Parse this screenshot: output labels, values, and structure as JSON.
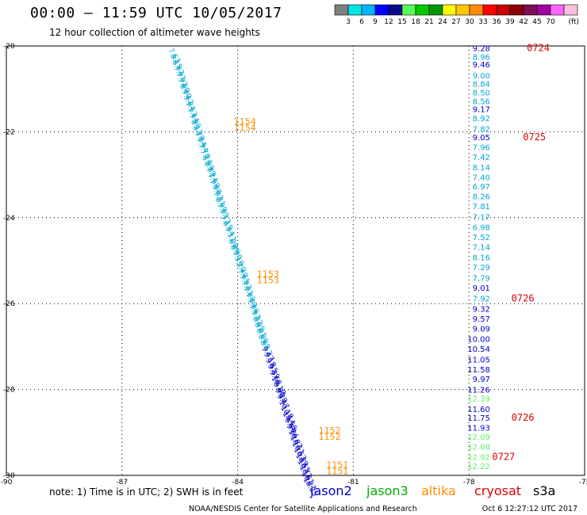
{
  "header": {
    "title": "00:00 – 11:59 UTC 10/05/2017",
    "subtitle": "12 hour collection of altimeter wave heights"
  },
  "colorbar": {
    "colors": [
      "#808080",
      "#00e5e5",
      "#00b4ff",
      "#0000ff",
      "#0a0a8c",
      "#55ff55",
      "#00c800",
      "#009600",
      "#ffff00",
      "#ffc800",
      "#ff8c00",
      "#ff0000",
      "#c80000",
      "#8c0000",
      "#7a0e5a",
      "#a000a0",
      "#ff64ff",
      "#ffc0e0"
    ],
    "labels": [
      "3",
      "6",
      "9",
      "12",
      "15",
      "18",
      "21",
      "24",
      "27",
      "30",
      "33",
      "36",
      "39",
      "42",
      "45",
      "70"
    ],
    "unit": "(ft)"
  },
  "chart_data": {
    "type": "scatter",
    "xlim": [
      -90,
      -75
    ],
    "ylim": [
      -30,
      -20
    ],
    "x_ticks": [
      "-90",
      "-87",
      "-84",
      "-81",
      "-78",
      "-75"
    ],
    "y_ticks": [
      "-20",
      "-22",
      "-24",
      "-26",
      "-28",
      "-30"
    ],
    "grid": true,
    "colors": {
      "jason2": "#0000c8",
      "jason3": "#00aa00",
      "altika": "#ff8c00",
      "cryosat": "#dd0000",
      "s3a": "#000000",
      "cyan": "#00a8d0",
      "lightgreen": "#66ee66"
    },
    "track_west": {
      "x_start": -85.8,
      "x_end": -82.3,
      "values": [
        "7.63",
        "8.15",
        "8.02",
        "7.91",
        "7.92",
        "7.90",
        "8.00",
        "7.62",
        "7.84",
        "7.63",
        "7.44",
        "7.96",
        "8.13",
        "8.28",
        "7.84",
        "7.94",
        "7.78",
        "7.74",
        "6.99",
        "6.89",
        "7.24",
        "7.08",
        "7.08",
        "7.03",
        "7.31",
        "6.99",
        "7.05",
        "7.13",
        "7.15",
        "6.84",
        "7.11",
        "7.00",
        "6.96",
        "6.90",
        "7.16",
        "7.20",
        "7.40",
        "7.65",
        "7.92",
        "7.81",
        "7.80",
        "7.09",
        "7.86",
        "7.63",
        "7.32",
        "8.05",
        "8.01",
        "8.06",
        "8.65",
        "8.57",
        "9.47",
        "9.18",
        "9.55",
        "9.39",
        "9.68",
        "10.10",
        "9.80",
        "9.28",
        "9.47",
        "10.18",
        "10.14",
        "10.55",
        "9.90",
        "9.86",
        "10.82",
        "10.51",
        "10.53",
        "10.29",
        "10.55",
        "10.72",
        "10.61",
        "10.27",
        "10.25"
      ]
    },
    "labels_west": [
      {
        "text": "1154",
        "lon": -84.1,
        "lat": -21.75
      },
      {
        "text": "1154",
        "lon": -84.1,
        "lat": -21.9
      },
      {
        "text": "1153",
        "lon": -83.5,
        "lat": -25.3
      },
      {
        "text": "1153",
        "lon": -83.5,
        "lat": -25.45
      },
      {
        "text": "1152",
        "lon": -81.9,
        "lat": -28.95
      },
      {
        "text": "1152",
        "lon": -81.9,
        "lat": -29.1
      },
      {
        "text": "1151",
        "lon": -81.7,
        "lat": -29.75
      },
      {
        "text": "1151",
        "lon": -81.7,
        "lat": -29.9
      }
    ],
    "track_east": [
      {
        "v": "9.28",
        "s": "jason2",
        "lat": -20.05
      },
      {
        "v": "8.96",
        "s": "cyan",
        "lat": -20.25
      },
      {
        "v": "9.46",
        "s": "jason2",
        "lat": -20.42
      },
      {
        "v": "9.00",
        "s": "cyan",
        "lat": -20.68
      },
      {
        "v": "8.84",
        "s": "cyan",
        "lat": -20.88
      },
      {
        "v": "8.50",
        "s": "cyan",
        "lat": -21.08
      },
      {
        "v": "8.56",
        "s": "cyan",
        "lat": -21.28
      },
      {
        "v": "9.17",
        "s": "jason2",
        "lat": -21.47
      },
      {
        "v": "8.92",
        "s": "cyan",
        "lat": -21.68
      },
      {
        "v": "7.82",
        "s": "cyan",
        "lat": -21.93
      },
      {
        "v": "9.05",
        "s": "jason2",
        "lat": -22.12
      },
      {
        "v": "7.96",
        "s": "cyan",
        "lat": -22.35
      },
      {
        "v": "7.42",
        "s": "cyan",
        "lat": -22.58
      },
      {
        "v": "8.14",
        "s": "cyan",
        "lat": -22.82
      },
      {
        "v": "7.40",
        "s": "cyan",
        "lat": -23.05
      },
      {
        "v": "6.97",
        "s": "cyan",
        "lat": -23.27
      },
      {
        "v": "8.26",
        "s": "cyan",
        "lat": -23.5
      },
      {
        "v": "7.81",
        "s": "cyan",
        "lat": -23.73
      },
      {
        "v": "7.17",
        "s": "cyan",
        "lat": -23.98
      },
      {
        "v": "6.98",
        "s": "cyan",
        "lat": -24.22
      },
      {
        "v": "7.52",
        "s": "cyan",
        "lat": -24.45
      },
      {
        "v": "7.14",
        "s": "cyan",
        "lat": -24.68
      },
      {
        "v": "8.16",
        "s": "cyan",
        "lat": -24.92
      },
      {
        "v": "7.29",
        "s": "cyan",
        "lat": -25.15
      },
      {
        "v": "7.79",
        "s": "cyan",
        "lat": -25.4
      },
      {
        "v": "9.01",
        "s": "jason2",
        "lat": -25.63
      },
      {
        "v": "7.92",
        "s": "cyan",
        "lat": -25.88
      },
      {
        "v": "9.32",
        "s": "jason2",
        "lat": -26.12
      },
      {
        "v": "9.57",
        "s": "jason2",
        "lat": -26.35
      },
      {
        "v": "9.09",
        "s": "jason2",
        "lat": -26.58
      },
      {
        "v": "10.00",
        "s": "jason2",
        "lat": -26.82
      },
      {
        "v": "10.54",
        "s": "jason2",
        "lat": -27.05
      },
      {
        "v": "11.05",
        "s": "jason2",
        "lat": -27.3
      },
      {
        "v": "11.58",
        "s": "jason2",
        "lat": -27.53
      },
      {
        "v": "9.97",
        "s": "jason2",
        "lat": -27.75
      },
      {
        "v": "11.26",
        "s": "jason2",
        "lat": -28.0
      },
      {
        "v": "12.39",
        "s": "lightgreen",
        "lat": -28.2
      },
      {
        "v": "11.60",
        "s": "jason2",
        "lat": -28.45
      },
      {
        "v": "11.75",
        "s": "jason2",
        "lat": -28.65
      },
      {
        "v": "11.93",
        "s": "jason2",
        "lat": -28.88
      },
      {
        "v": "12.09",
        "s": "lightgreen",
        "lat": -29.1
      },
      {
        "v": "12.08",
        "s": "lightgreen",
        "lat": -29.33
      },
      {
        "v": "12.92",
        "s": "lightgreen",
        "lat": -29.57
      },
      {
        "v": "12.22",
        "s": "lightgreen",
        "lat": -29.78
      }
    ],
    "labels_east": [
      {
        "text": "0724",
        "lat": -20.05,
        "lon": -76.5
      },
      {
        "text": "0725",
        "lat": -22.12,
        "lon": -76.6
      },
      {
        "text": "0726",
        "lat": -25.88,
        "lon": -76.9
      },
      {
        "text": "0726",
        "lat": -28.65,
        "lon": -76.9
      },
      {
        "text": "0727",
        "lat": -29.57,
        "lon": -77.4
      }
    ]
  },
  "footer": {
    "note": "note: 1) Time is in UTC; 2) SWH is in feet",
    "legend": [
      {
        "name": "jason2",
        "color": "#0000c8"
      },
      {
        "name": "jason3",
        "color": "#00aa00"
      },
      {
        "name": "altika",
        "color": "#ff8c00"
      },
      {
        "name": "cryosat",
        "color": "#dd0000"
      },
      {
        "name": "s3a",
        "color": "#000000"
      }
    ],
    "credit": "NOAA/NESDIS Center for Satellite Applications and Research",
    "timestamp": "Oct  6 12:27:12 UTC 2017"
  }
}
